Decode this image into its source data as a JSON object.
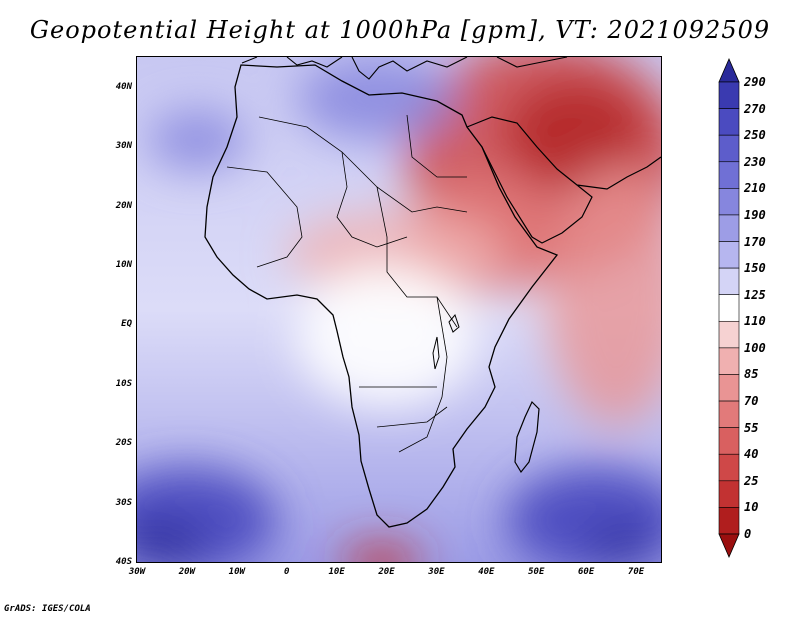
{
  "title": "Geopotential Height at 1000hPa [gpm], VT: 2021092509",
  "credit": "GrADS: IGES/COLA",
  "lat_axis": {
    "labels": [
      "40N",
      "30N",
      "20N",
      "10N",
      "EQ",
      "10S",
      "20S",
      "30S",
      "40S"
    ],
    "values": [
      40,
      30,
      20,
      10,
      0,
      -10,
      -20,
      -30,
      -40
    ]
  },
  "lon_axis": {
    "labels": [
      "30W",
      "20W",
      "10W",
      "0",
      "10E",
      "20E",
      "30E",
      "40E",
      "50E",
      "60E",
      "70E"
    ],
    "values": [
      -30,
      -20,
      -10,
      0,
      10,
      20,
      30,
      40,
      50,
      60,
      70
    ]
  },
  "extent": {
    "lon_min": -30,
    "lon_max": 75,
    "lat_min": -40,
    "lat_max": 45
  },
  "colorbar": {
    "labels": [
      "290",
      "270",
      "250",
      "230",
      "210",
      "190",
      "170",
      "150",
      "125",
      "110",
      "100",
      "85",
      "70",
      "55",
      "40",
      "25",
      "10",
      "0"
    ],
    "colors": [
      "#2a2a9a",
      "#3a3ab0",
      "#4b4bc0",
      "#5d5dcb",
      "#7070d5",
      "#8686de",
      "#9d9de6",
      "#b6b6ef",
      "#d4d4f6",
      "#ffffff",
      "#f6d2d2",
      "#f0b0b0",
      "#e99494",
      "#e27a7a",
      "#d96060",
      "#cf4848",
      "#c23232",
      "#b01e1e",
      "#9a0f0f"
    ]
  },
  "field_blobs": [
    {
      "id": "arabia-iran-low",
      "lon": 52,
      "lat": 28,
      "rx": 28,
      "ry": 20,
      "color": "#cf4848",
      "opacity": 0.85
    },
    {
      "id": "arabia-core",
      "lon": 58,
      "lat": 32,
      "rx": 14,
      "ry": 9,
      "color": "#b01e1e",
      "opacity": 0.8
    },
    {
      "id": "east-indian-ocean-warm",
      "lon": 66,
      "lat": 5,
      "rx": 14,
      "ry": 22,
      "color": "#e99494",
      "opacity": 0.8
    },
    {
      "id": "horn-trough",
      "lon": 40,
      "lat": 15,
      "rx": 16,
      "ry": 10,
      "color": "#e27a7a",
      "opacity": 0.8
    },
    {
      "id": "sahel-pink",
      "lon": 22,
      "lat": 12,
      "rx": 22,
      "ry": 7,
      "color": "#f0b0b0",
      "opacity": 0.85
    },
    {
      "id": "central-africa-white",
      "lon": 20,
      "lat": -2,
      "rx": 18,
      "ry": 12,
      "color": "#ffffff",
      "opacity": 0.9
    },
    {
      "id": "mediterranean-high",
      "lon": 18,
      "lat": 38,
      "rx": 16,
      "ry": 7,
      "color": "#8686de",
      "opacity": 0.85
    },
    {
      "id": "nw-atlantic-high",
      "lon": -18,
      "lat": 31,
      "rx": 10,
      "ry": 5,
      "color": "#8686de",
      "opacity": 0.85
    },
    {
      "id": "south-atlantic-high",
      "lon": -20,
      "lat": -33,
      "rx": 18,
      "ry": 9,
      "color": "#4b4bc0",
      "opacity": 0.95
    },
    {
      "id": "south-atlantic-core",
      "lon": -25,
      "lat": -37,
      "rx": 9,
      "ry": 4,
      "color": "#2a2a9a",
      "opacity": 0.9
    },
    {
      "id": "south-indian-high",
      "lon": 62,
      "lat": -33,
      "rx": 18,
      "ry": 9,
      "color": "#4b4bc0",
      "opacity": 0.95
    },
    {
      "id": "south-indian-core",
      "lon": 67,
      "lat": -37,
      "rx": 7,
      "ry": 3,
      "color": "#2a2a9a",
      "opacity": 0.9
    },
    {
      "id": "cape-low",
      "lon": 19,
      "lat": -40,
      "rx": 8,
      "ry": 3,
      "color": "#c23232",
      "opacity": 0.9
    }
  ]
}
